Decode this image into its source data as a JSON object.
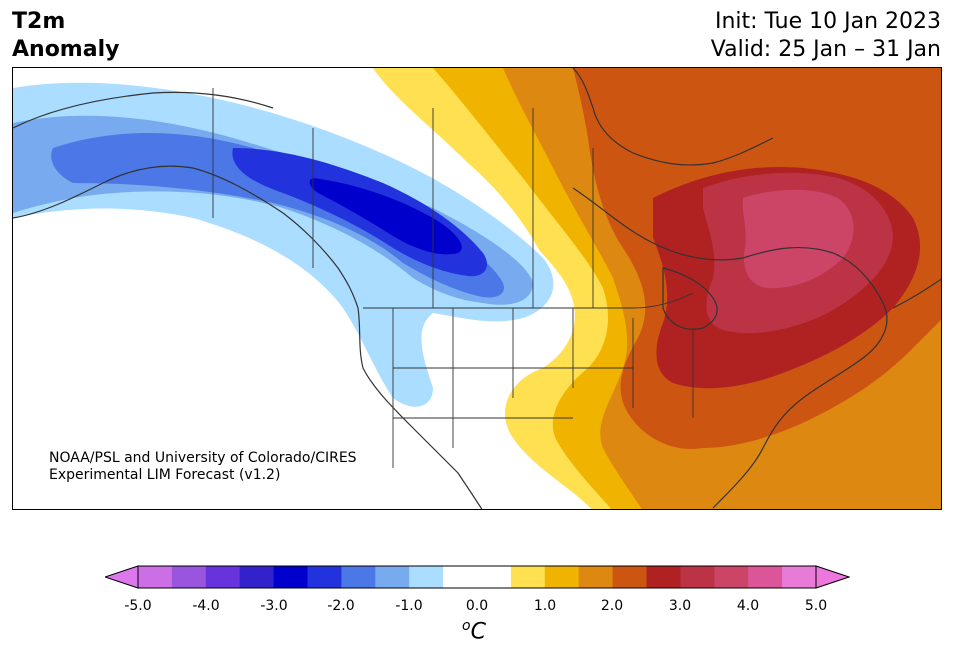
{
  "title": {
    "line1": "T2m",
    "line2": "Anomaly"
  },
  "init": "Init: Tue 10 Jan 2023",
  "valid": "Valid: 25 Jan – 31 Jan",
  "credit": {
    "line1": "NOAA/PSL and University of Colorado/CIRES",
    "line2": "Experimental LIM Forecast (v1.2)"
  },
  "colorbar": {
    "ticks": [
      "-5.0",
      "-4.0",
      "-3.0",
      "-2.0",
      "-1.0",
      "0.0",
      "1.0",
      "2.0",
      "3.0",
      "4.0",
      "5.0"
    ],
    "unit_main": "C",
    "unit_super": "o",
    "colors": [
      "#cc6ee6",
      "#9955dd",
      "#6633dd",
      "#3322cc",
      "#0000cc",
      "#2233dd",
      "#4c77e6",
      "#77aaee",
      "#aaddff",
      "#ffffff",
      "#ffffff",
      "#ffe050",
      "#f0b400",
      "#dd8811",
      "#cc5511",
      "#b02222",
      "#bb3344",
      "#cc4466",
      "#dd5599",
      "#e87ad8"
    ],
    "extend_low": "#dd77ee",
    "extend_high": "#ee77dd"
  },
  "legend_colors": {
    "deep_blue": "#0000cc",
    "blue": "#2233dd",
    "mid_blue": "#4c77e6",
    "light_blue": "#77aaee",
    "pale_blue": "#aaddff",
    "yellow": "#ffe050",
    "gold": "#f0b400",
    "orange": "#dd8811",
    "dark_orange": "#cc5511",
    "red": "#b02222",
    "crimson": "#bb3344",
    "rose": "#cc4466"
  }
}
